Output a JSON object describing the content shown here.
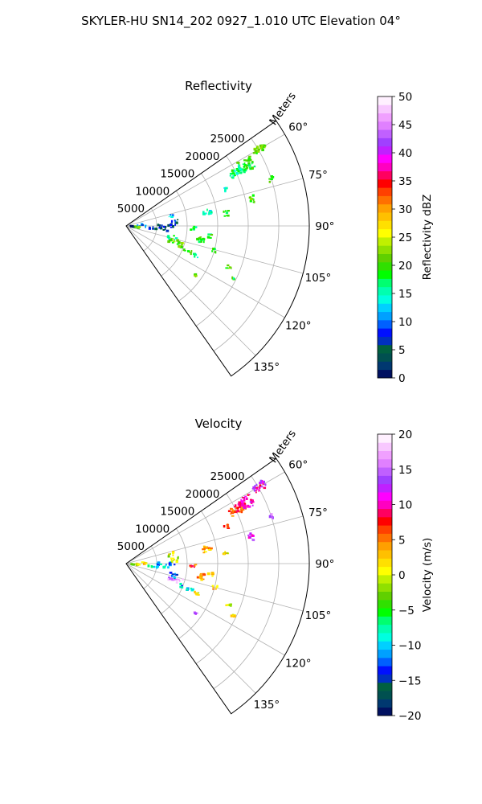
{
  "figure": {
    "title": "SKYLER-HU  SN14_202  0927_1.010 UTC Elevation 04°"
  },
  "chart_data": [
    {
      "type": "heatmap",
      "projection": "polar-sector",
      "title": "Reflectivity",
      "range_axis_label": "Meters",
      "range_ticks": [
        5000,
        10000,
        15000,
        20000,
        25000
      ],
      "range_tick_labels": [
        "5000",
        "10000",
        "15000",
        "20000",
        "25000"
      ],
      "range_max": 30000,
      "azimuth_range": [
        55,
        145
      ],
      "azimuth_ticks": [
        60,
        75,
        90,
        105,
        120,
        135
      ],
      "azimuth_tick_labels": [
        "60°",
        "75°",
        "90°",
        "105°",
        "120°",
        "135°"
      ],
      "grid": true,
      "colorbar": {
        "label": "Reflectivity dBZ",
        "vmin": 0,
        "vmax": 50,
        "ticks": [
          0,
          5,
          10,
          15,
          20,
          25,
          30,
          35,
          40,
          45,
          50
        ],
        "tick_labels": [
          "0",
          "5",
          "10",
          "15",
          "20",
          "25",
          "30",
          "35",
          "40",
          "45",
          "50"
        ],
        "colors": [
          "#001060",
          "#003870",
          "#005050",
          "#006040",
          "#0030c0",
          "#0010ff",
          "#0060ff",
          "#00a0ff",
          "#00d0ff",
          "#00ffe0",
          "#00ffb0",
          "#00ff70",
          "#00ff00",
          "#30e000",
          "#60d000",
          "#90e000",
          "#c0f000",
          "#ffff00",
          "#ffe000",
          "#ffc000",
          "#ffa000",
          "#ff7000",
          "#ff4000",
          "#ff0000",
          "#ff0060",
          "#ff00c0",
          "#ff00ff",
          "#c020ff",
          "#a040ff",
          "#c060ff",
          "#e080ff",
          "#f0a0ff",
          "#f8c8ff",
          "#fff0ff"
        ]
      },
      "clusters": [
        {
          "az": 60,
          "r": 25200,
          "dr": 2200,
          "daz": 3,
          "value": 21
        },
        {
          "az": 63,
          "r": 22000,
          "dr": 2500,
          "daz": 5,
          "value": 19
        },
        {
          "az": 64,
          "r": 20000,
          "dr": 2200,
          "daz": 4,
          "value": 17
        },
        {
          "az": 70,
          "r": 17500,
          "dr": 800,
          "daz": 2,
          "value": 14
        },
        {
          "az": 78,
          "r": 21000,
          "dr": 900,
          "daz": 3,
          "value": 20
        },
        {
          "az": 80,
          "r": 13500,
          "dr": 1500,
          "daz": 4,
          "value": 15
        },
        {
          "az": 83,
          "r": 16500,
          "dr": 900,
          "daz": 3,
          "value": 18
        },
        {
          "az": 86,
          "r": 8000,
          "dr": 1200,
          "daz": 6,
          "value": 7
        },
        {
          "az": 78,
          "r": 7500,
          "dr": 1000,
          "daz": 5,
          "value": 12
        },
        {
          "az": 90,
          "r": 6500,
          "dr": 3000,
          "daz": 4,
          "value": 5
        },
        {
          "az": 95,
          "r": 5200,
          "dr": 3500,
          "daz": 4,
          "value": 6
        },
        {
          "az": 88,
          "r": 2500,
          "dr": 1500,
          "daz": 10,
          "value": 10
        },
        {
          "az": 92,
          "r": 11000,
          "dr": 900,
          "daz": 3,
          "value": 18
        },
        {
          "az": 100,
          "r": 12500,
          "dr": 1200,
          "daz": 5,
          "value": 19
        },
        {
          "az": 97,
          "r": 14000,
          "dr": 900,
          "daz": 3,
          "value": 18
        },
        {
          "az": 108,
          "r": 8500,
          "dr": 2500,
          "daz": 5,
          "value": 21
        },
        {
          "az": 104,
          "r": 7800,
          "dr": 1500,
          "daz": 5,
          "value": 15
        },
        {
          "az": 112,
          "r": 10500,
          "dr": 2500,
          "daz": 3,
          "value": 20
        },
        {
          "az": 113,
          "r": 12500,
          "dr": 900,
          "daz": 2,
          "value": 15
        },
        {
          "az": 105,
          "r": 15000,
          "dr": 800,
          "daz": 3,
          "value": 18
        },
        {
          "az": 112,
          "r": 18200,
          "dr": 800,
          "daz": 2,
          "value": 20
        },
        {
          "az": 116,
          "r": 19500,
          "dr": 500,
          "daz": 1,
          "value": 19
        },
        {
          "az": 125,
          "r": 14000,
          "dr": 700,
          "daz": 2,
          "value": 21
        },
        {
          "az": 96,
          "r": 1800,
          "dr": 1000,
          "daz": 8,
          "value": 20
        },
        {
          "az": 93,
          "r": 1000,
          "dr": 600,
          "daz": 12,
          "value": 2
        },
        {
          "az": 72,
          "r": 25000,
          "dr": 800,
          "daz": 2,
          "value": 20
        }
      ]
    },
    {
      "type": "heatmap",
      "projection": "polar-sector",
      "title": "Velocity",
      "range_axis_label": "Meters",
      "range_ticks": [
        5000,
        10000,
        15000,
        20000,
        25000
      ],
      "range_tick_labels": [
        "5000",
        "10000",
        "15000",
        "20000",
        "25000"
      ],
      "range_max": 30000,
      "azimuth_range": [
        55,
        145
      ],
      "azimuth_ticks": [
        60,
        75,
        90,
        105,
        120,
        135
      ],
      "azimuth_tick_labels": [
        "60°",
        "75°",
        "90°",
        "105°",
        "120°",
        "135°"
      ],
      "grid": true,
      "colorbar": {
        "label": "Velocity (m/s)",
        "vmin": -20,
        "vmax": 20,
        "ticks": [
          -20,
          -15,
          -10,
          -5,
          0,
          5,
          10,
          15,
          20
        ],
        "tick_labels": [
          "−20",
          "−15",
          "−10",
          "−5",
          "0",
          "5",
          "10",
          "15",
          "20"
        ],
        "colors": [
          "#001060",
          "#003870",
          "#005050",
          "#006040",
          "#0030c0",
          "#0010ff",
          "#0060ff",
          "#00a0ff",
          "#00d0ff",
          "#00ffe0",
          "#00ffb0",
          "#00ff70",
          "#00ff00",
          "#30e000",
          "#60d000",
          "#90e000",
          "#c0f000",
          "#ffff00",
          "#ffe000",
          "#ffc000",
          "#ffa000",
          "#ff7000",
          "#ff4000",
          "#ff0000",
          "#ff0060",
          "#ff00c0",
          "#ff00ff",
          "#c020ff",
          "#a040ff",
          "#c060ff",
          "#e080ff",
          "#f0a0ff",
          "#f8c8ff",
          "#fff0ff"
        ]
      },
      "clusters": [
        {
          "az": 60,
          "r": 25200,
          "dr": 2200,
          "daz": 3,
          "value": 11
        },
        {
          "az": 63,
          "r": 22000,
          "dr": 2500,
          "daz": 5,
          "value": 10
        },
        {
          "az": 64,
          "r": 20000,
          "dr": 2200,
          "daz": 4,
          "value": 7
        },
        {
          "az": 70,
          "r": 17500,
          "dr": 800,
          "daz": 2,
          "value": 6
        },
        {
          "az": 78,
          "r": 21000,
          "dr": 900,
          "daz": 3,
          "value": 13
        },
        {
          "az": 80,
          "r": 13500,
          "dr": 1500,
          "daz": 4,
          "value": 3
        },
        {
          "az": 83,
          "r": 16500,
          "dr": 900,
          "daz": 3,
          "value": 1
        },
        {
          "az": 86,
          "r": 8000,
          "dr": 1200,
          "daz": 6,
          "value": -1
        },
        {
          "az": 78,
          "r": 7500,
          "dr": 1000,
          "daz": 5,
          "value": 0
        },
        {
          "az": 90,
          "r": 6500,
          "dr": 3000,
          "daz": 4,
          "value": -11
        },
        {
          "az": 95,
          "r": 5200,
          "dr": 3500,
          "daz": 4,
          "value": -8
        },
        {
          "az": 88,
          "r": 2500,
          "dr": 1500,
          "daz": 10,
          "value": 1
        },
        {
          "az": 92,
          "r": 11000,
          "dr": 900,
          "daz": 3,
          "value": 6
        },
        {
          "az": 100,
          "r": 12500,
          "dr": 1200,
          "daz": 5,
          "value": 5
        },
        {
          "az": 97,
          "r": 14000,
          "dr": 900,
          "daz": 3,
          "value": 1
        },
        {
          "az": 108,
          "r": 8500,
          "dr": 2500,
          "daz": 5,
          "value": 16
        },
        {
          "az": 104,
          "r": 7800,
          "dr": 1500,
          "daz": 5,
          "value": -12
        },
        {
          "az": 112,
          "r": 10500,
          "dr": 2500,
          "daz": 3,
          "value": -10
        },
        {
          "az": 113,
          "r": 12500,
          "dr": 900,
          "daz": 2,
          "value": 1
        },
        {
          "az": 105,
          "r": 15000,
          "dr": 800,
          "daz": 3,
          "value": 3
        },
        {
          "az": 112,
          "r": 18200,
          "dr": 800,
          "daz": 2,
          "value": 1
        },
        {
          "az": 116,
          "r": 19500,
          "dr": 500,
          "daz": 1,
          "value": 2
        },
        {
          "az": 125,
          "r": 14000,
          "dr": 700,
          "daz": 2,
          "value": 15
        },
        {
          "az": 96,
          "r": 1800,
          "dr": 1000,
          "daz": 8,
          "value": 1
        },
        {
          "az": 93,
          "r": 1000,
          "dr": 600,
          "daz": 12,
          "value": -3
        },
        {
          "az": 72,
          "r": 25000,
          "dr": 800,
          "daz": 2,
          "value": 15
        }
      ]
    }
  ]
}
